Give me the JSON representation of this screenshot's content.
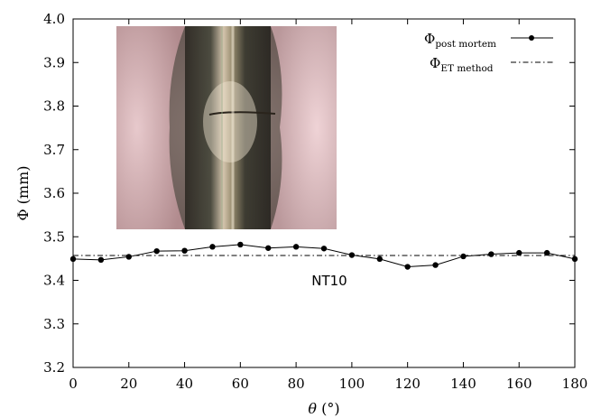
{
  "chart_data": {
    "type": "line",
    "xlabel": {
      "var": "θ",
      "unit": "(°)"
    },
    "ylabel": "Φ (mm)",
    "xlim": [
      0,
      180
    ],
    "ylim": [
      3.2,
      4.0
    ],
    "xticks": [
      0,
      20,
      40,
      60,
      80,
      100,
      120,
      140,
      160,
      180
    ],
    "yticks": [
      "3.2",
      "3.3",
      "3.4",
      "3.5",
      "3.6",
      "3.7",
      "3.8",
      "3.9",
      "4.0"
    ],
    "grid": false,
    "legend_position": "top-right",
    "annotation": "NT10",
    "inset_image": "specimen-photo",
    "series": [
      {
        "name": "Φ",
        "name_sub": "post mortem",
        "style": "line-with-points",
        "color": "#000000",
        "x": [
          0,
          10,
          20,
          30,
          40,
          50,
          60,
          70,
          80,
          90,
          100,
          110,
          120,
          130,
          140,
          150,
          160,
          170,
          180
        ],
        "y": [
          3.449,
          3.447,
          3.454,
          3.467,
          3.468,
          3.477,
          3.482,
          3.474,
          3.477,
          3.473,
          3.458,
          3.449,
          3.431,
          3.435,
          3.455,
          3.46,
          3.463,
          3.463,
          3.449
        ]
      },
      {
        "name": "Φ",
        "name_sub": "ET method",
        "style": "dash-dot",
        "color": "#000000",
        "x": [
          0,
          180
        ],
        "y": [
          3.457,
          3.457
        ]
      }
    ]
  }
}
